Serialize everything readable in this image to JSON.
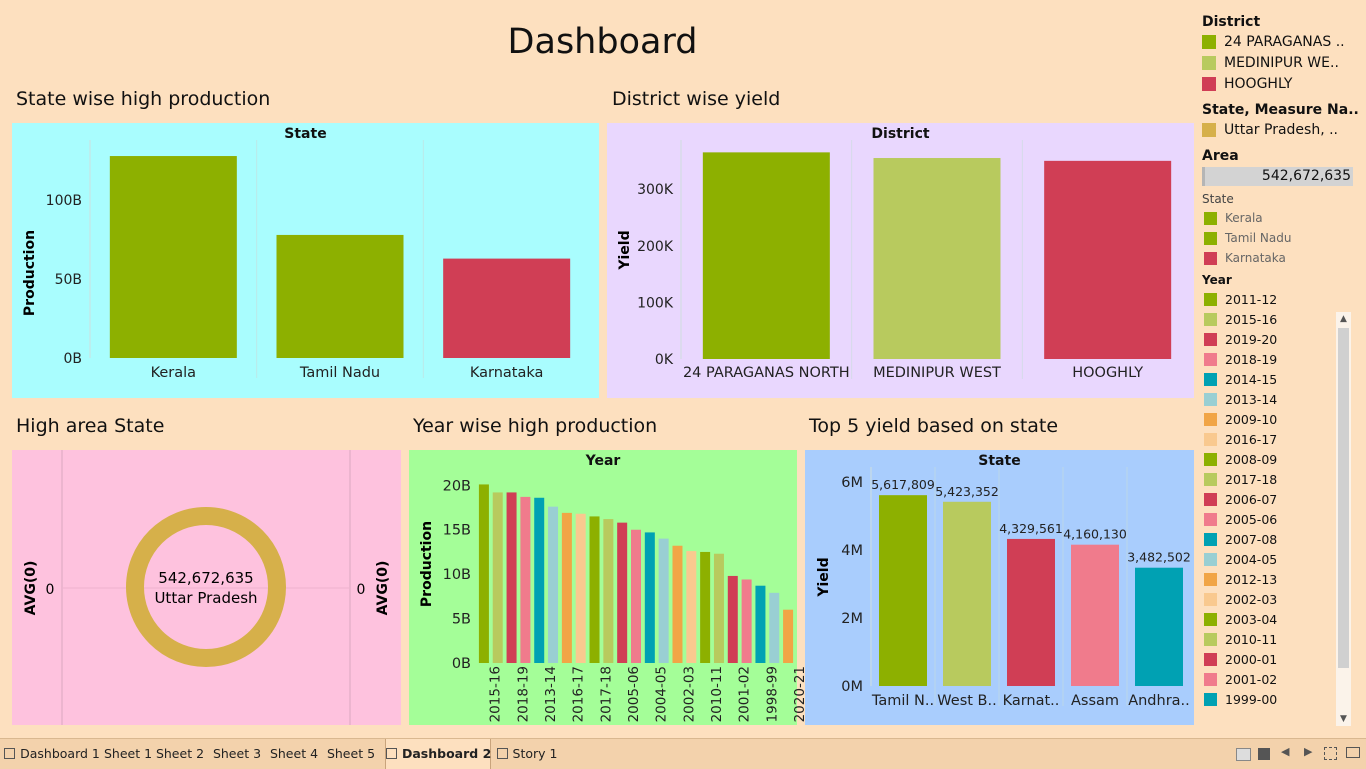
{
  "dashboard_title": "Dashboard",
  "sections": {
    "state_prod": "State wise high production",
    "district_yield": "District wise yield",
    "high_area": "High area State",
    "year_prod": "Year wise high production",
    "top5": "Top 5 yield based on state"
  },
  "colors": {
    "bg": "#fde0bf",
    "green": "#8db000",
    "lightgreen": "#b8ca5e",
    "red": "#d03e55",
    "pink": "#f07b8c",
    "teal": "#00a1b3",
    "lightteal": "#99cfd3",
    "orange": "#f1a546",
    "peach": "#f9c98f",
    "gold": "#d6b04a"
  },
  "chart_data": [
    {
      "type": "bar",
      "header": "State",
      "categories": [
        "Kerala",
        "Tamil Nadu",
        "Karnataka"
      ],
      "values": [
        128000000000,
        78000000000,
        63000000000
      ],
      "ylabel": "Production",
      "yticks": [
        "0B",
        "50B",
        "100B"
      ],
      "ylim": [
        0,
        135000000000
      ],
      "colors": [
        "#8db000",
        "#8db000",
        "#d03e55"
      ]
    },
    {
      "type": "bar",
      "header": "District",
      "categories": [
        "24 PARAGANAS NORTH",
        "MEDINIPUR WEST",
        "HOOGHLY"
      ],
      "values": [
        365000,
        355000,
        350000
      ],
      "ylabel": "Yield",
      "yticks": [
        "0K",
        "100K",
        "200K",
        "300K"
      ],
      "ylim": [
        0,
        378000
      ],
      "colors": [
        "#8db000",
        "#b8ca5e",
        "#d03e55"
      ]
    },
    {
      "type": "pie",
      "ylabel_left": "AVG(0)",
      "ylabel_right": "AVG(0)",
      "tick_left": "0",
      "tick_right": "0",
      "value_label": "542,672,635",
      "state_label": "Uttar Pradesh",
      "color": "#d6b04a"
    },
    {
      "type": "bar",
      "header": "Year",
      "ylabel": "Production",
      "yticks": [
        "0B",
        "5B",
        "10B",
        "15B",
        "20B"
      ],
      "ylim": [
        0,
        21500000000
      ],
      "tick_labels": [
        "2015-16",
        "2018-19",
        "2013-14",
        "2016-17",
        "2017-18",
        "2005-06",
        "2004-05",
        "2002-03",
        "2010-11",
        "2001-02",
        "1998-99",
        "2020-21"
      ],
      "values": [
        20100000000,
        19200000000,
        19200000000,
        18700000000,
        18600000000,
        17600000000,
        16900000000,
        16800000000,
        16500000000,
        16200000000,
        15800000000,
        15000000000,
        14700000000,
        14000000000,
        13200000000,
        12600000000,
        12500000000,
        12300000000,
        9800000000,
        9400000000,
        8700000000,
        7900000000,
        6000000000
      ],
      "colors": [
        "#8db000",
        "#b8ca5e",
        "#d03e55",
        "#f07b8c",
        "#00a1b3",
        "#99cfd3",
        "#f1a546",
        "#f9c98f",
        "#8db000",
        "#b8ca5e",
        "#d03e55",
        "#f07b8c",
        "#00a1b3",
        "#99cfd3",
        "#f1a546",
        "#f9c98f",
        "#8db000",
        "#b8ca5e",
        "#d03e55",
        "#f07b8c",
        "#00a1b3",
        "#99cfd3",
        "#f1a546"
      ]
    },
    {
      "type": "bar",
      "header": "State",
      "categories": [
        "Tamil N..",
        "West B..",
        "Karnat..",
        "Assam",
        "Andhra.."
      ],
      "values": [
        5617809,
        5423352,
        4329561,
        4160130,
        3482502
      ],
      "data_labels": [
        "5,617,809",
        "5,423,352",
        "4,329,561",
        "4,160,130",
        "3,482,502"
      ],
      "ylabel": "Yield",
      "yticks": [
        "0M",
        "2M",
        "4M",
        "6M"
      ],
      "ylim": [
        0,
        6300000
      ],
      "colors": [
        "#8db000",
        "#b8ca5e",
        "#d03e55",
        "#f07b8c",
        "#00a1b3"
      ]
    }
  ],
  "legend": {
    "district_title": "District",
    "districts": [
      {
        "label": "24 PARAGANAS ..",
        "color": "#8db000"
      },
      {
        "label": "MEDINIPUR WE..",
        "color": "#b8ca5e"
      },
      {
        "label": "HOOGHLY",
        "color": "#d03e55"
      }
    ],
    "state_measure_title": "State, Measure Na..",
    "state_measure": [
      {
        "label": "Uttar Pradesh, ..",
        "color": "#d6b04a"
      }
    ],
    "area_title": "Area",
    "area_value": "542,672,635",
    "state_title": "State",
    "states": [
      {
        "label": "Kerala",
        "color": "#8db000"
      },
      {
        "label": "Tamil Nadu",
        "color": "#8db000"
      },
      {
        "label": "Karnataka",
        "color": "#d03e55"
      }
    ],
    "year_title": "Year",
    "years": [
      {
        "label": "2011-12",
        "color": "#8db000"
      },
      {
        "label": "2015-16",
        "color": "#b8ca5e"
      },
      {
        "label": "2019-20",
        "color": "#d03e55"
      },
      {
        "label": "2018-19",
        "color": "#f07b8c"
      },
      {
        "label": "2014-15",
        "color": "#00a1b3"
      },
      {
        "label": "2013-14",
        "color": "#99cfd3"
      },
      {
        "label": "2009-10",
        "color": "#f1a546"
      },
      {
        "label": "2016-17",
        "color": "#f9c98f"
      },
      {
        "label": "2008-09",
        "color": "#8db000"
      },
      {
        "label": "2017-18",
        "color": "#b8ca5e"
      },
      {
        "label": "2006-07",
        "color": "#d03e55"
      },
      {
        "label": "2005-06",
        "color": "#f07b8c"
      },
      {
        "label": "2007-08",
        "color": "#00a1b3"
      },
      {
        "label": "2004-05",
        "color": "#99cfd3"
      },
      {
        "label": "2012-13",
        "color": "#f1a546"
      },
      {
        "label": "2002-03",
        "color": "#f9c98f"
      },
      {
        "label": "2003-04",
        "color": "#8db000"
      },
      {
        "label": "2010-11",
        "color": "#b8ca5e"
      },
      {
        "label": "2000-01",
        "color": "#d03e55"
      },
      {
        "label": "2001-02",
        "color": "#f07b8c"
      },
      {
        "label": "1999-00",
        "color": "#00a1b3"
      }
    ]
  },
  "tabs": [
    {
      "label": "Dashboard 1",
      "icon": "dashboard-icon"
    },
    {
      "label": "Sheet 1",
      "icon": ""
    },
    {
      "label": "Sheet 2",
      "icon": ""
    },
    {
      "label": "Sheet 3",
      "icon": ""
    },
    {
      "label": "Sheet 4",
      "icon": ""
    },
    {
      "label": "Sheet 5",
      "icon": ""
    },
    {
      "label": "Dashboard 2",
      "icon": "dashboard-icon",
      "active": true
    },
    {
      "label": "Story 1",
      "icon": "story-icon"
    }
  ]
}
